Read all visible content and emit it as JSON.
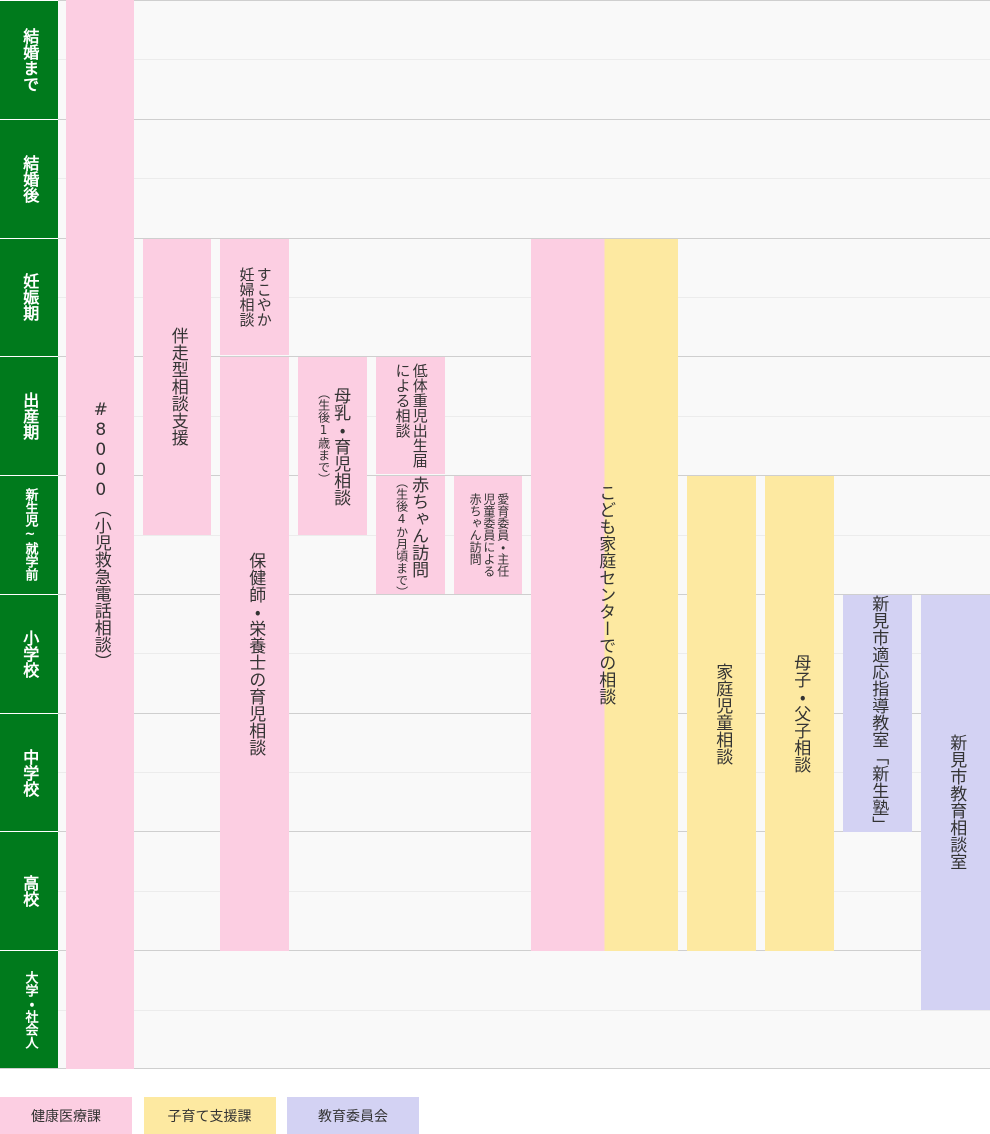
{
  "stages": [
    "結婚まで",
    "結婚後",
    "妊娠期",
    "出産期",
    "新生児~就学前",
    "小学校",
    "中学校",
    "高校",
    "大学・社会人"
  ],
  "services": [
    {
      "lines": [
        "#8000（小児救急電話相談）"
      ]
    },
    {
      "lines": [
        "伴走型相談支援"
      ]
    },
    {
      "lines": [
        "すこやか",
        "妊婦相談"
      ]
    },
    {
      "lines": [
        "保健師・栄養士の育児相談"
      ]
    },
    {
      "lines": [
        "母乳・育児相談"
      ],
      "sub": "（生後1歳まで）"
    },
    {
      "lines": [
        "低体重児出生届",
        "による相談"
      ]
    },
    {
      "lines": [
        "赤ちゃん訪問"
      ],
      "sub": "（生後4か月頃まで）"
    },
    {
      "lines": [
        "愛育委員・主任",
        "児童委員による",
        "赤ちゃん訪問"
      ]
    },
    {
      "lines": [
        "こども家庭センターでの相談"
      ]
    },
    {
      "lines": [
        "家庭児童相談"
      ]
    },
    {
      "lines": [
        "母子・父子相談"
      ]
    },
    {
      "lines": [
        "新見市適応指導教室「新生塾」"
      ]
    },
    {
      "lines": [
        "新見市教育相談室"
      ]
    }
  ],
  "departments": [
    {
      "name": "健康医療課",
      "color": "#fccee2"
    },
    {
      "name": "子育て支援課",
      "color": "#fde9a1"
    },
    {
      "name": "教育委員会",
      "color": "#d3d2f3"
    }
  ]
}
